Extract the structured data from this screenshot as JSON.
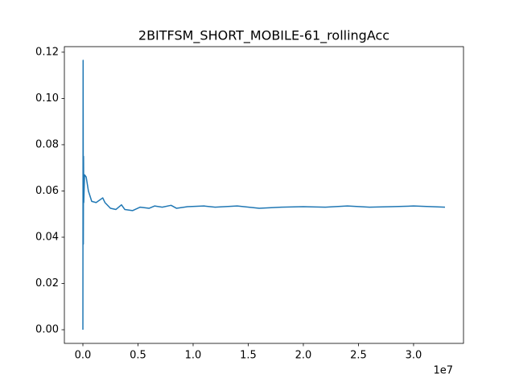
{
  "chart_data": {
    "type": "line",
    "title": "2BITFSM_SHORT_MOBILE-61_rollingAcc",
    "color": "#1f77b4",
    "x": [
      0,
      20000,
      40000,
      60000,
      80000,
      150000,
      300000,
      500000,
      800000,
      1200000,
      1800000,
      2000000,
      2500000,
      3000000,
      3500000,
      3800000,
      4500000,
      5200000,
      6000000,
      6500000,
      7200000,
      8000000,
      8500000,
      9500000,
      11000000,
      12000000,
      14000000,
      16000000,
      18000000,
      20000000,
      22000000,
      24000000,
      26000000,
      28000000,
      30000000,
      32850000
    ],
    "values": [
      0,
      0.1165,
      0.037,
      0.075,
      0.055,
      0.067,
      0.066,
      0.06,
      0.0555,
      0.055,
      0.057,
      0.055,
      0.0525,
      0.052,
      0.054,
      0.052,
      0.0515,
      0.053,
      0.0525,
      0.0535,
      0.053,
      0.0538,
      0.0525,
      0.0532,
      0.0535,
      0.053,
      0.0535,
      0.0525,
      0.053,
      0.0532,
      0.053,
      0.0535,
      0.053,
      0.0532,
      0.0535,
      0.053
    ],
    "xlim": [
      -1680000,
      34530000
    ],
    "xticks": [
      {
        "value": 0,
        "label": "0.0"
      },
      {
        "value": 5000000,
        "label": "0.5"
      },
      {
        "value": 10000000,
        "label": "1.0"
      },
      {
        "value": 15000000,
        "label": "1.5"
      },
      {
        "value": 20000000,
        "label": "2.0"
      },
      {
        "value": 25000000,
        "label": "2.5"
      },
      {
        "value": 30000000,
        "label": "3.0"
      }
    ],
    "x_offset_label": "1e7",
    "ylim": [
      -0.0059,
      0.1224
    ],
    "yticks": [
      {
        "value": 0,
        "label": "0.00"
      },
      0.02,
      0.04,
      0.06,
      0.08,
      {
        "value": 0.1,
        "label": "0.10"
      },
      0.12
    ],
    "grid": false
  }
}
